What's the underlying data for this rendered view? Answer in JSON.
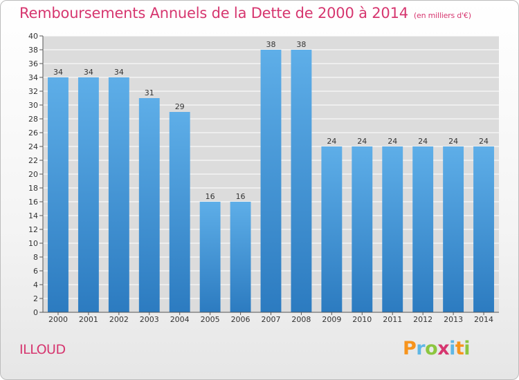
{
  "header": {
    "title": "Remboursements Annuels de la Dette de 2000 à 2014",
    "unit": "(en milliers d'€)"
  },
  "footer": {
    "commune": "ILLOUD",
    "logo_letters": [
      {
        "char": "P",
        "color": "#f7941d"
      },
      {
        "char": "r",
        "color": "#5fb7e5"
      },
      {
        "char": "o",
        "color": "#8cc63f"
      },
      {
        "char": "x",
        "color": "#d6366f"
      },
      {
        "char": "i",
        "color": "#5fb7e5"
      },
      {
        "char": "t",
        "color": "#f7941d"
      },
      {
        "char": "i",
        "color": "#8cc63f"
      }
    ]
  },
  "colors": {
    "title": "#d6366f",
    "bar_light": "#5eaee8",
    "bar_dark": "#2c7bc0",
    "grid": "#ffffff",
    "plot_bg": "#dcdcdc"
  },
  "chart_data": {
    "type": "bar",
    "title": "Remboursements Annuels de la Dette de 2000 à 2014",
    "xlabel": "",
    "ylabel": "",
    "categories": [
      "2000",
      "2001",
      "2002",
      "2003",
      "2004",
      "2005",
      "2006",
      "2007",
      "2008",
      "2009",
      "2010",
      "2011",
      "2012",
      "2013",
      "2014"
    ],
    "values": [
      34,
      34,
      34,
      31,
      29,
      16,
      16,
      38,
      38,
      24,
      24,
      24,
      24,
      24,
      24
    ],
    "ylim": [
      0,
      40
    ],
    "ytick_step": 2,
    "grid": true,
    "data_labels": true
  }
}
